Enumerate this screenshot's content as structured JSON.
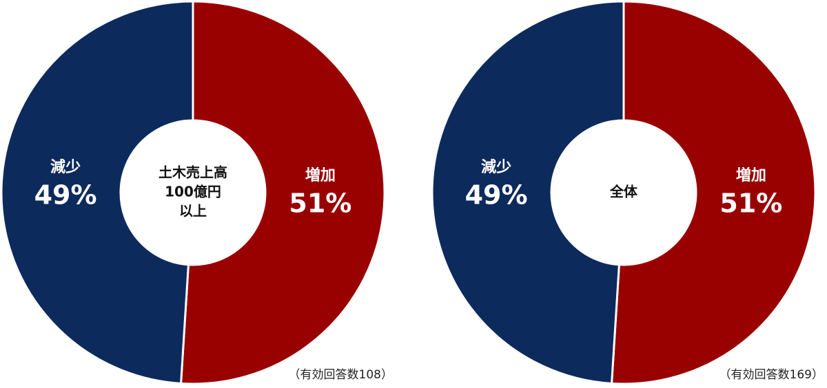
{
  "chart_data": [
    {
      "type": "donut",
      "center_label": [
        "土木売上高",
        "100億円",
        "以上"
      ],
      "note": "（有効回答数108）",
      "categories": [
        "増加",
        "減少"
      ],
      "values": [
        51,
        49
      ],
      "value_labels": [
        "51%",
        "49%"
      ],
      "colors": [
        "#990000",
        "#0d2a5c"
      ]
    },
    {
      "type": "donut",
      "center_label": [
        "全体"
      ],
      "note": "（有効回答数169）",
      "categories": [
        "増加",
        "減少"
      ],
      "values": [
        51,
        49
      ],
      "value_labels": [
        "51%",
        "49%"
      ],
      "colors": [
        "#990000",
        "#0d2a5c"
      ]
    }
  ]
}
